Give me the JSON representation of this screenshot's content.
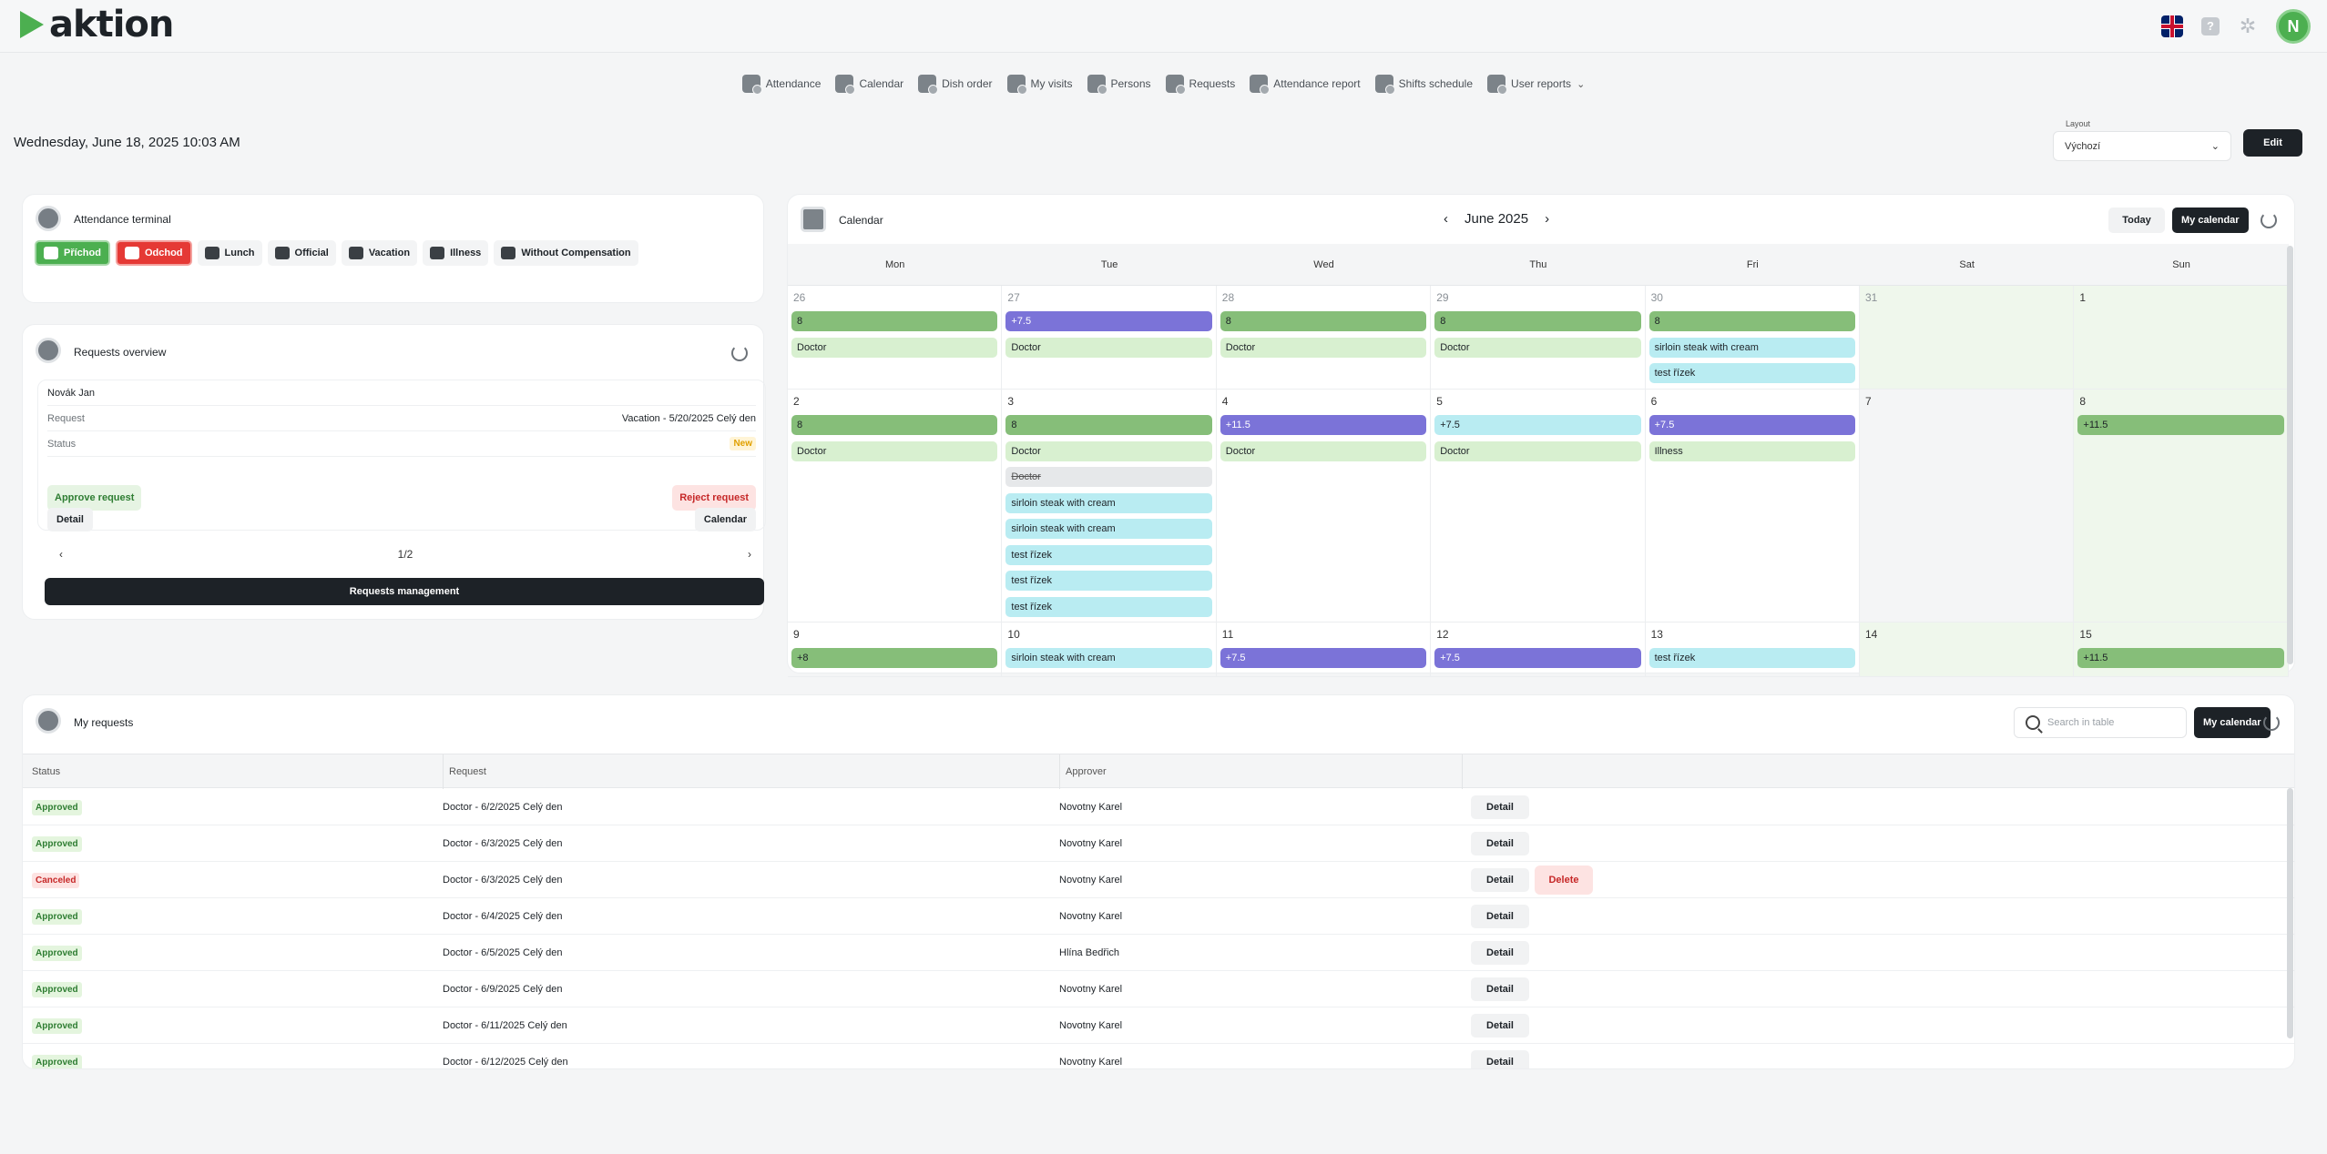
{
  "app": {
    "logo_text": "aktion"
  },
  "topbar": {
    "help_label": "?",
    "avatar_initial": "N"
  },
  "nav": [
    {
      "label": "Attendance"
    },
    {
      "label": "Calendar"
    },
    {
      "label": "Dish order"
    },
    {
      "label": "My visits"
    },
    {
      "label": "Persons"
    },
    {
      "label": "Requests"
    },
    {
      "label": "Attendance report"
    },
    {
      "label": "Shifts schedule"
    },
    {
      "label": "User reports"
    }
  ],
  "datetime": "Wednesday, June 18, 2025 10:03 AM",
  "layout": {
    "label": "Layout",
    "value": "Výchozí",
    "edit": "Edit"
  },
  "terminal": {
    "title": "Attendance terminal",
    "buttons": [
      "Příchod",
      "Odchod",
      "Lunch",
      "Official",
      "Vacation",
      "Illness",
      "Without Compensation"
    ]
  },
  "requests_overview": {
    "title": "Requests overview",
    "person": "Novák Jan",
    "request_label": "Request",
    "request_value": "Vacation - 5/20/2025 Celý den",
    "status_label": "Status",
    "status_value": "New",
    "approve": "Approve request",
    "reject": "Reject request",
    "detail": "Detail",
    "calendar": "Calendar",
    "pager": "1/2",
    "management": "Requests management"
  },
  "calendar": {
    "title": "Calendar",
    "month": "June 2025",
    "today": "Today",
    "my_calendar": "My calendar",
    "weekdays": [
      "Mon",
      "Tue",
      "Wed",
      "Thu",
      "Fri",
      "Sat",
      "Sun"
    ],
    "weeks": [
      {
        "days": [
          {
            "num": "26",
            "faded": true,
            "events": [
              {
                "t": "8",
                "c": "g"
              },
              {
                "t": "Doctor",
                "c": "lg"
              }
            ]
          },
          {
            "num": "27",
            "faded": true,
            "events": [
              {
                "t": "+7.5",
                "c": "p"
              },
              {
                "t": "Doctor",
                "c": "lg"
              }
            ]
          },
          {
            "num": "28",
            "faded": true,
            "events": [
              {
                "t": "8",
                "c": "g"
              },
              {
                "t": "Doctor",
                "c": "lg"
              }
            ]
          },
          {
            "num": "29",
            "faded": true,
            "events": [
              {
                "t": "8",
                "c": "g"
              },
              {
                "t": "Doctor",
                "c": "lg"
              }
            ]
          },
          {
            "num": "30",
            "faded": true,
            "events": [
              {
                "t": "8",
                "c": "g"
              },
              {
                "t": "sirloin steak with cream",
                "c": "c"
              },
              {
                "t": "test řízek",
                "c": "c"
              }
            ]
          },
          {
            "num": "31",
            "faded": true,
            "weekend": true,
            "events": []
          },
          {
            "num": "1",
            "weekend": true,
            "events": []
          }
        ]
      },
      {
        "days": [
          {
            "num": "2",
            "events": [
              {
                "t": "8",
                "c": "g"
              },
              {
                "t": "Doctor",
                "c": "lg"
              }
            ]
          },
          {
            "num": "3",
            "events": [
              {
                "t": "8",
                "c": "g"
              },
              {
                "t": "Doctor",
                "c": "lg"
              },
              {
                "t": "Doctor",
                "c": "gr"
              },
              {
                "t": "sirloin steak with cream",
                "c": "c"
              },
              {
                "t": "sirloin steak with cream",
                "c": "c"
              },
              {
                "t": "test řízek",
                "c": "c"
              },
              {
                "t": "test řízek",
                "c": "c"
              },
              {
                "t": "test řízek",
                "c": "c"
              }
            ]
          },
          {
            "num": "4",
            "events": [
              {
                "t": "+11.5",
                "c": "p"
              },
              {
                "t": "Doctor",
                "c": "lg"
              }
            ]
          },
          {
            "num": "5",
            "events": [
              {
                "t": "+7.5",
                "c": "c"
              },
              {
                "t": "Doctor",
                "c": "lg"
              }
            ]
          },
          {
            "num": "6",
            "events": [
              {
                "t": "+7.5",
                "c": "p"
              },
              {
                "t": "Illness",
                "c": "lg"
              }
            ]
          },
          {
            "num": "7",
            "gray": true,
            "events": []
          },
          {
            "num": "8",
            "weekend": true,
            "events": [
              {
                "t": "+11.5",
                "c": "g"
              }
            ]
          }
        ]
      },
      {
        "days": [
          {
            "num": "9",
            "events": [
              {
                "t": "+8",
                "c": "g"
              }
            ]
          },
          {
            "num": "10",
            "events": [
              {
                "t": "sirloin steak with cream",
                "c": "c"
              }
            ]
          },
          {
            "num": "11",
            "events": [
              {
                "t": "+7.5",
                "c": "p"
              }
            ]
          },
          {
            "num": "12",
            "events": [
              {
                "t": "+7.5",
                "c": "p"
              }
            ]
          },
          {
            "num": "13",
            "events": [
              {
                "t": "test řízek",
                "c": "c"
              }
            ]
          },
          {
            "num": "14",
            "weekend": true,
            "events": []
          },
          {
            "num": "15",
            "weekend": true,
            "events": [
              {
                "t": "+11.5",
                "c": "g"
              }
            ]
          }
        ]
      }
    ]
  },
  "my_requests": {
    "title": "My requests",
    "search_placeholder": "Search in table",
    "my_calendar": "My calendar",
    "columns": [
      "Status",
      "Request",
      "Approver"
    ],
    "detail": "Detail",
    "delete": "Delete",
    "rows": [
      {
        "status": "Approved",
        "request": "Doctor - 6/2/2025 Celý den",
        "approver": "Novotny Karel"
      },
      {
        "status": "Approved",
        "request": "Doctor - 6/3/2025 Celý den",
        "approver": "Novotny Karel"
      },
      {
        "status": "Canceled",
        "request": "Doctor - 6/3/2025 Celý den",
        "approver": "Novotny Karel",
        "deletable": true
      },
      {
        "status": "Approved",
        "request": "Doctor - 6/4/2025 Celý den",
        "approver": "Novotny Karel"
      },
      {
        "status": "Approved",
        "request": "Doctor - 6/5/2025 Celý den",
        "approver": "Hlína Bedřich"
      },
      {
        "status": "Approved",
        "request": "Doctor - 6/9/2025 Celý den",
        "approver": "Novotny Karel"
      },
      {
        "status": "Approved",
        "request": "Doctor - 6/11/2025 Celý den",
        "approver": "Novotny Karel"
      },
      {
        "status": "Approved",
        "request": "Doctor - 6/12/2025 Celý den",
        "approver": "Novotny Karel"
      }
    ]
  },
  "colors": {
    "green": "#4caf50",
    "red": "#e53935",
    "purple": "#7b73d8",
    "cyan": "#b9ecf2",
    "dark": "#1d2227"
  }
}
